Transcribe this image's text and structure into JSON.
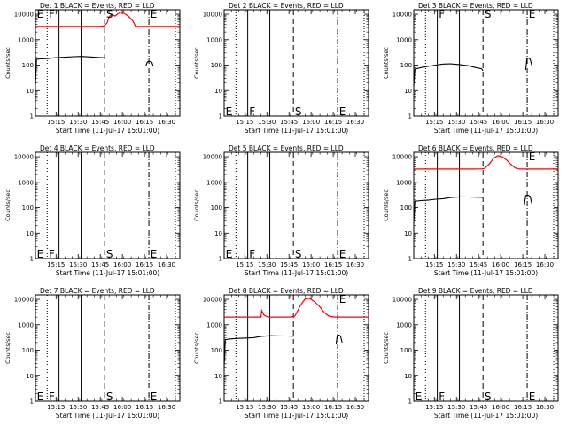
{
  "figure": {
    "background": "#ffffff"
  },
  "style": {
    "events_color": "#000000",
    "lld_color": "#ff0000"
  },
  "time_ticks": [
    "15:15",
    "15:30",
    "15:45",
    "16:00",
    "16:15",
    "16:30"
  ],
  "marker_labels": {
    "E": "E",
    "F": "F",
    "S": "S"
  },
  "chart_data": [
    {
      "type": "line",
      "title": "Det 1 BLACK = Events, RED = LLD",
      "xlabel": "Start Time (11-Jul-17 15:01:00)",
      "ylabel": "Counts/sec",
      "yscale": "log",
      "ylim": [
        1,
        15000
      ],
      "ytick_labels": [
        "1",
        "10",
        "100",
        "1000",
        "10000"
      ],
      "xlim_minutes": [
        0,
        98
      ],
      "markers": {
        "dotted": [
          8,
          95
        ],
        "solid": [
          16,
          31
        ],
        "dashed": [
          47
        ],
        "dashdot": [
          77
        ]
      },
      "letters": [
        {
          "text": "E",
          "x": 1,
          "y": 10000
        },
        {
          "text": "F",
          "x": 9,
          "y": 10000
        },
        {
          "text": "S",
          "x": 48,
          "y": 10000
        },
        {
          "text": "E",
          "x": 78,
          "y": 10000
        }
      ],
      "series": [
        {
          "name": "Events",
          "color": "#000000",
          "segments": [
            [
              [
                0,
                18
              ],
              [
                0.8,
                170
              ],
              [
                4,
                175
              ],
              [
                8,
                180
              ],
              [
                13,
                195
              ],
              [
                20,
                205
              ],
              [
                26,
                215
              ],
              [
                31,
                220
              ],
              [
                36,
                212
              ],
              [
                40,
                205
              ],
              [
                43,
                200
              ],
              [
                47,
                195
              ]
            ],
            [
              [
                75,
                95
              ],
              [
                76,
                135
              ],
              [
                77.5,
                140
              ],
              [
                79,
                130
              ],
              [
                80,
                90
              ]
            ]
          ]
        },
        {
          "name": "LLD",
          "color": "#ff0000",
          "segments": [
            [
              [
                0,
                3300
              ],
              [
                10,
                3300
              ],
              [
                20,
                3300
              ],
              [
                30,
                3300
              ],
              [
                38,
                3300
              ],
              [
                43,
                3300
              ],
              [
                46,
                3400
              ],
              [
                48.5,
                4400
              ],
              [
                50,
                8000
              ],
              [
                52,
                10000
              ],
              [
                54,
                8500
              ],
              [
                56,
                10500
              ],
              [
                58,
                12000
              ],
              [
                60,
                11000
              ],
              [
                63,
                8500
              ],
              [
                66,
                5500
              ],
              [
                68,
                3300
              ],
              [
                72,
                3300
              ],
              [
                80,
                3300
              ],
              [
                90,
                3300
              ],
              [
                98,
                3300
              ]
            ]
          ]
        }
      ]
    },
    {
      "type": "line",
      "title": "Det 2 BLACK = Events, RED = LLD",
      "xlabel": "Start Time (11-Jul-17 15:01:00)",
      "ylabel": "Counts/sec",
      "yscale": "log",
      "ylim": [
        1,
        15000
      ],
      "ytick_labels": [
        "1",
        "10",
        "100",
        "1000",
        "10000"
      ],
      "xlim_minutes": [
        0,
        98
      ],
      "markers": {
        "dotted": [
          8,
          95
        ],
        "solid": [
          16,
          31
        ],
        "dashed": [
          47
        ],
        "dashdot": [
          77
        ]
      },
      "letters": [
        {
          "text": "E",
          "x": 1,
          "y": 1.5
        },
        {
          "text": "F",
          "x": 17,
          "y": 1.5
        },
        {
          "text": "S",
          "x": 48,
          "y": 1.5
        },
        {
          "text": "E",
          "x": 78,
          "y": 1.5
        }
      ],
      "series": []
    },
    {
      "type": "line",
      "title": "Det 3 BLACK = Events, RED = LLD",
      "xlabel": "Start Time (11-Jul-17 15:01:00)",
      "ylabel": "Counts/sec",
      "yscale": "log",
      "ylim": [
        1,
        15000
      ],
      "ytick_labels": [
        "1",
        "10",
        "100",
        "1000",
        "10000"
      ],
      "xlim_minutes": [
        0,
        98
      ],
      "markers": {
        "dotted": [
          8,
          95
        ],
        "solid": [
          16,
          31
        ],
        "dashed": [
          47
        ],
        "dashdot": [
          77
        ]
      },
      "letters": [
        {
          "text": "F",
          "x": 17,
          "y": 10000
        },
        {
          "text": "S",
          "x": 48,
          "y": 10000
        },
        {
          "text": "E",
          "x": 78,
          "y": 10000
        }
      ],
      "series": [
        {
          "name": "Events",
          "color": "#000000",
          "segments": [
            [
              [
                0,
                15
              ],
              [
                0.8,
                70
              ],
              [
                5,
                80
              ],
              [
                10,
                90
              ],
              [
                15,
                100
              ],
              [
                20,
                110
              ],
              [
                25,
                112
              ],
              [
                31,
                105
              ],
              [
                37,
                95
              ],
              [
                42,
                80
              ],
              [
                46,
                72
              ],
              [
                47,
                60
              ]
            ],
            [
              [
                76,
                65
              ],
              [
                76.8,
                180
              ],
              [
                78,
                190
              ],
              [
                79,
                170
              ],
              [
                80,
                100
              ]
            ]
          ]
        }
      ]
    },
    {
      "type": "line",
      "title": "Det 4 BLACK = Events, RED = LLD",
      "xlabel": "Start Time (11-Jul-17 15:01:00)",
      "ylabel": "Counts/sec",
      "yscale": "log",
      "ylim": [
        1,
        15000
      ],
      "ytick_labels": [
        "1",
        "10",
        "100",
        "1000",
        "10000"
      ],
      "xlim_minutes": [
        0,
        98
      ],
      "markers": {
        "dotted": [
          8,
          95
        ],
        "solid": [
          16,
          31
        ],
        "dashed": [
          47
        ],
        "dashdot": [
          77
        ]
      },
      "letters": [
        {
          "text": "E",
          "x": 1,
          "y": 1.5
        },
        {
          "text": "F",
          "x": 9,
          "y": 1.5
        },
        {
          "text": "S",
          "x": 48,
          "y": 1.5
        },
        {
          "text": "E",
          "x": 78,
          "y": 1.5
        }
      ],
      "series": []
    },
    {
      "type": "line",
      "title": "Det 5 BLACK = Events, RED = LLD",
      "xlabel": "Start Time (11-Jul-17 15:01:00)",
      "ylabel": "Counts/sec",
      "yscale": "log",
      "ylim": [
        1,
        15000
      ],
      "ytick_labels": [
        "1",
        "10",
        "100",
        "1000",
        "10000"
      ],
      "xlim_minutes": [
        0,
        98
      ],
      "markers": {
        "dotted": [
          8,
          95
        ],
        "solid": [
          16,
          31
        ],
        "dashed": [
          47
        ],
        "dashdot": [
          77
        ]
      },
      "letters": [
        {
          "text": "E",
          "x": 1,
          "y": 1.5
        },
        {
          "text": "F",
          "x": 17,
          "y": 1.5
        },
        {
          "text": "S",
          "x": 48,
          "y": 1.5
        },
        {
          "text": "E",
          "x": 78,
          "y": 1.5
        }
      ],
      "series": []
    },
    {
      "type": "line",
      "title": "Det 6 BLACK = Events, RED = LLD",
      "xlabel": "Start Time (11-Jul-17 15:01:00)",
      "ylabel": "Counts/sec",
      "yscale": "log",
      "ylim": [
        1,
        15000
      ],
      "ytick_labels": [
        "1",
        "10",
        "100",
        "1000",
        "10000"
      ],
      "xlim_minutes": [
        0,
        98
      ],
      "markers": {
        "dotted": [
          8,
          95
        ],
        "solid": [
          16,
          31
        ],
        "dashed": [
          47
        ],
        "dashdot": [
          77
        ]
      },
      "letters": [
        {
          "text": "E",
          "x": 78,
          "y": 10000
        }
      ],
      "series": [
        {
          "name": "Events",
          "color": "#000000",
          "segments": [
            [
              [
                0,
                25
              ],
              [
                0.8,
                180
              ],
              [
                5,
                190
              ],
              [
                10,
                200
              ],
              [
                15,
                215
              ],
              [
                20,
                225
              ],
              [
                25,
                250
              ],
              [
                31,
                265
              ],
              [
                37,
                262
              ],
              [
                42,
                258
              ],
              [
                46,
                255
              ],
              [
                47,
                250
              ]
            ],
            [
              [
                75,
                120
              ],
              [
                76,
                300
              ],
              [
                77.5,
                310
              ],
              [
                79,
                280
              ],
              [
                80,
                150
              ]
            ]
          ]
        },
        {
          "name": "LLD",
          "color": "#ff0000",
          "segments": [
            [
              [
                0,
                3300
              ],
              [
                10,
                3300
              ],
              [
                20,
                3300
              ],
              [
                30,
                3300
              ],
              [
                40,
                3300
              ],
              [
                46,
                3350
              ],
              [
                48,
                3500
              ],
              [
                51,
                5000
              ],
              [
                54,
                8500
              ],
              [
                57,
                11000
              ],
              [
                60,
                10000
              ],
              [
                63,
                7500
              ],
              [
                66,
                5000
              ],
              [
                69,
                3600
              ],
              [
                72,
                3300
              ],
              [
                80,
                3300
              ],
              [
                90,
                3300
              ],
              [
                98,
                3300
              ]
            ]
          ]
        }
      ]
    },
    {
      "type": "line",
      "title": "Det 7 BLACK = Events, RED = LLD",
      "xlabel": "Start Time (11-Jul-17 15:01:00)",
      "ylabel": "Counts/sec",
      "yscale": "log",
      "ylim": [
        1,
        15000
      ],
      "ytick_labels": [
        "1",
        "10",
        "100",
        "1000",
        "10000"
      ],
      "xlim_minutes": [
        0,
        98
      ],
      "markers": {
        "dotted": [
          8,
          95
        ],
        "solid": [
          16,
          31
        ],
        "dashed": [
          47
        ],
        "dashdot": [
          77
        ]
      },
      "letters": [
        {
          "text": "E",
          "x": 1,
          "y": 1.5
        },
        {
          "text": "F",
          "x": 9,
          "y": 1.5
        },
        {
          "text": "S",
          "x": 48,
          "y": 1.5
        },
        {
          "text": "E",
          "x": 78,
          "y": 1.5
        }
      ],
      "series": []
    },
    {
      "type": "line",
      "title": "Det 8 BLACK = Events, RED = LLD",
      "xlabel": "Start Time (11-Jul-17 15:01:00)",
      "ylabel": "Counts/sec",
      "yscale": "log",
      "ylim": [
        1,
        15000
      ],
      "ytick_labels": [
        "1",
        "10",
        "100",
        "1000",
        "10000"
      ],
      "xlim_minutes": [
        0,
        98
      ],
      "markers": {
        "dotted": [
          8,
          95
        ],
        "solid": [
          16,
          31
        ],
        "dashed": [
          47
        ],
        "dashdot": [
          77
        ]
      },
      "letters": [
        {
          "text": "E",
          "x": 78,
          "y": 10000
        }
      ],
      "series": [
        {
          "name": "Events",
          "color": "#000000",
          "segments": [
            [
              [
                0,
                22
              ],
              [
                0.8,
                260
              ],
              [
                5,
                280
              ],
              [
                10,
                290
              ],
              [
                15,
                300
              ],
              [
                20,
                310
              ],
              [
                25,
                350
              ],
              [
                31,
                370
              ],
              [
                36,
                365
              ],
              [
                42,
                360
              ],
              [
                47,
                355
              ]
            ],
            [
              [
                76,
                180
              ],
              [
                76.8,
                380
              ],
              [
                78,
                390
              ],
              [
                79,
                360
              ],
              [
                80,
                200
              ]
            ]
          ]
        },
        {
          "name": "LLD",
          "color": "#ff0000",
          "segments": [
            [
              [
                0,
                2000
              ],
              [
                10,
                2000
              ],
              [
                20,
                2000
              ],
              [
                25,
                2000
              ],
              [
                25.5,
                3600
              ],
              [
                27,
                2400
              ],
              [
                30,
                2000
              ],
              [
                35,
                2000
              ],
              [
                40,
                2000
              ],
              [
                45,
                2000
              ],
              [
                48,
                2200
              ],
              [
                52,
                6000
              ],
              [
                55,
                10500
              ],
              [
                58,
                11000
              ],
              [
                62,
                7500
              ],
              [
                65,
                5000
              ],
              [
                68,
                3000
              ],
              [
                71,
                2200
              ],
              [
                75,
                2000
              ],
              [
                85,
                2000
              ],
              [
                98,
                2000
              ]
            ]
          ]
        }
      ]
    },
    {
      "type": "line",
      "title": "Det 9 BLACK = Events, RED = LLD",
      "xlabel": "Start Time (11-Jul-17 15:01:00)",
      "ylabel": "Counts/sec",
      "yscale": "log",
      "ylim": [
        1,
        15000
      ],
      "ytick_labels": [
        "1",
        "10",
        "100",
        "1000",
        "10000"
      ],
      "xlim_minutes": [
        0,
        98
      ],
      "markers": {
        "dotted": [
          8,
          95
        ],
        "solid": [
          16,
          31
        ],
        "dashed": [
          47
        ],
        "dashdot": [
          77
        ]
      },
      "letters": [
        {
          "text": "E",
          "x": 1,
          "y": 1.5
        },
        {
          "text": "F",
          "x": 17,
          "y": 1.5
        },
        {
          "text": "S",
          "x": 48,
          "y": 1.5
        },
        {
          "text": "E",
          "x": 78,
          "y": 1.5
        }
      ],
      "series": []
    }
  ]
}
